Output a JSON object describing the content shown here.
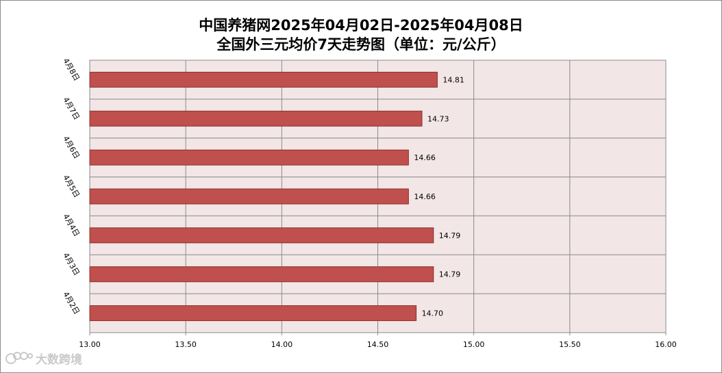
{
  "chart_data": {
    "type": "bar",
    "orientation": "horizontal",
    "title": "中国养猪网2025年04月02日-2025年04月08日",
    "subtitle": "全国外三元均价7天走势图（单位：元/公斤）",
    "categories": [
      "4月8日",
      "4月7日",
      "4月6日",
      "4月5日",
      "4月4日",
      "4月3日",
      "4月2日"
    ],
    "values": [
      14.81,
      14.73,
      14.66,
      14.66,
      14.79,
      14.79,
      14.7
    ],
    "value_labels": [
      "14.81",
      "14.73",
      "14.66",
      "14.66",
      "14.79",
      "14.79",
      "14.70"
    ],
    "xlim": [
      13.0,
      16.0
    ],
    "xticks": [
      "13.00",
      "13.50",
      "14.00",
      "14.50",
      "15.00",
      "15.50",
      "16.00"
    ],
    "xlabel": "",
    "ylabel": "",
    "grid": true,
    "legend": "none",
    "colors": {
      "bar_fill": "#c0504d",
      "bar_stroke": "#8c2f2c",
      "plot_bg": "#f2e6e6",
      "grid": "#8a8a8a"
    }
  },
  "watermark": {
    "text": "大数跨境",
    "icon": "logo-icon"
  }
}
